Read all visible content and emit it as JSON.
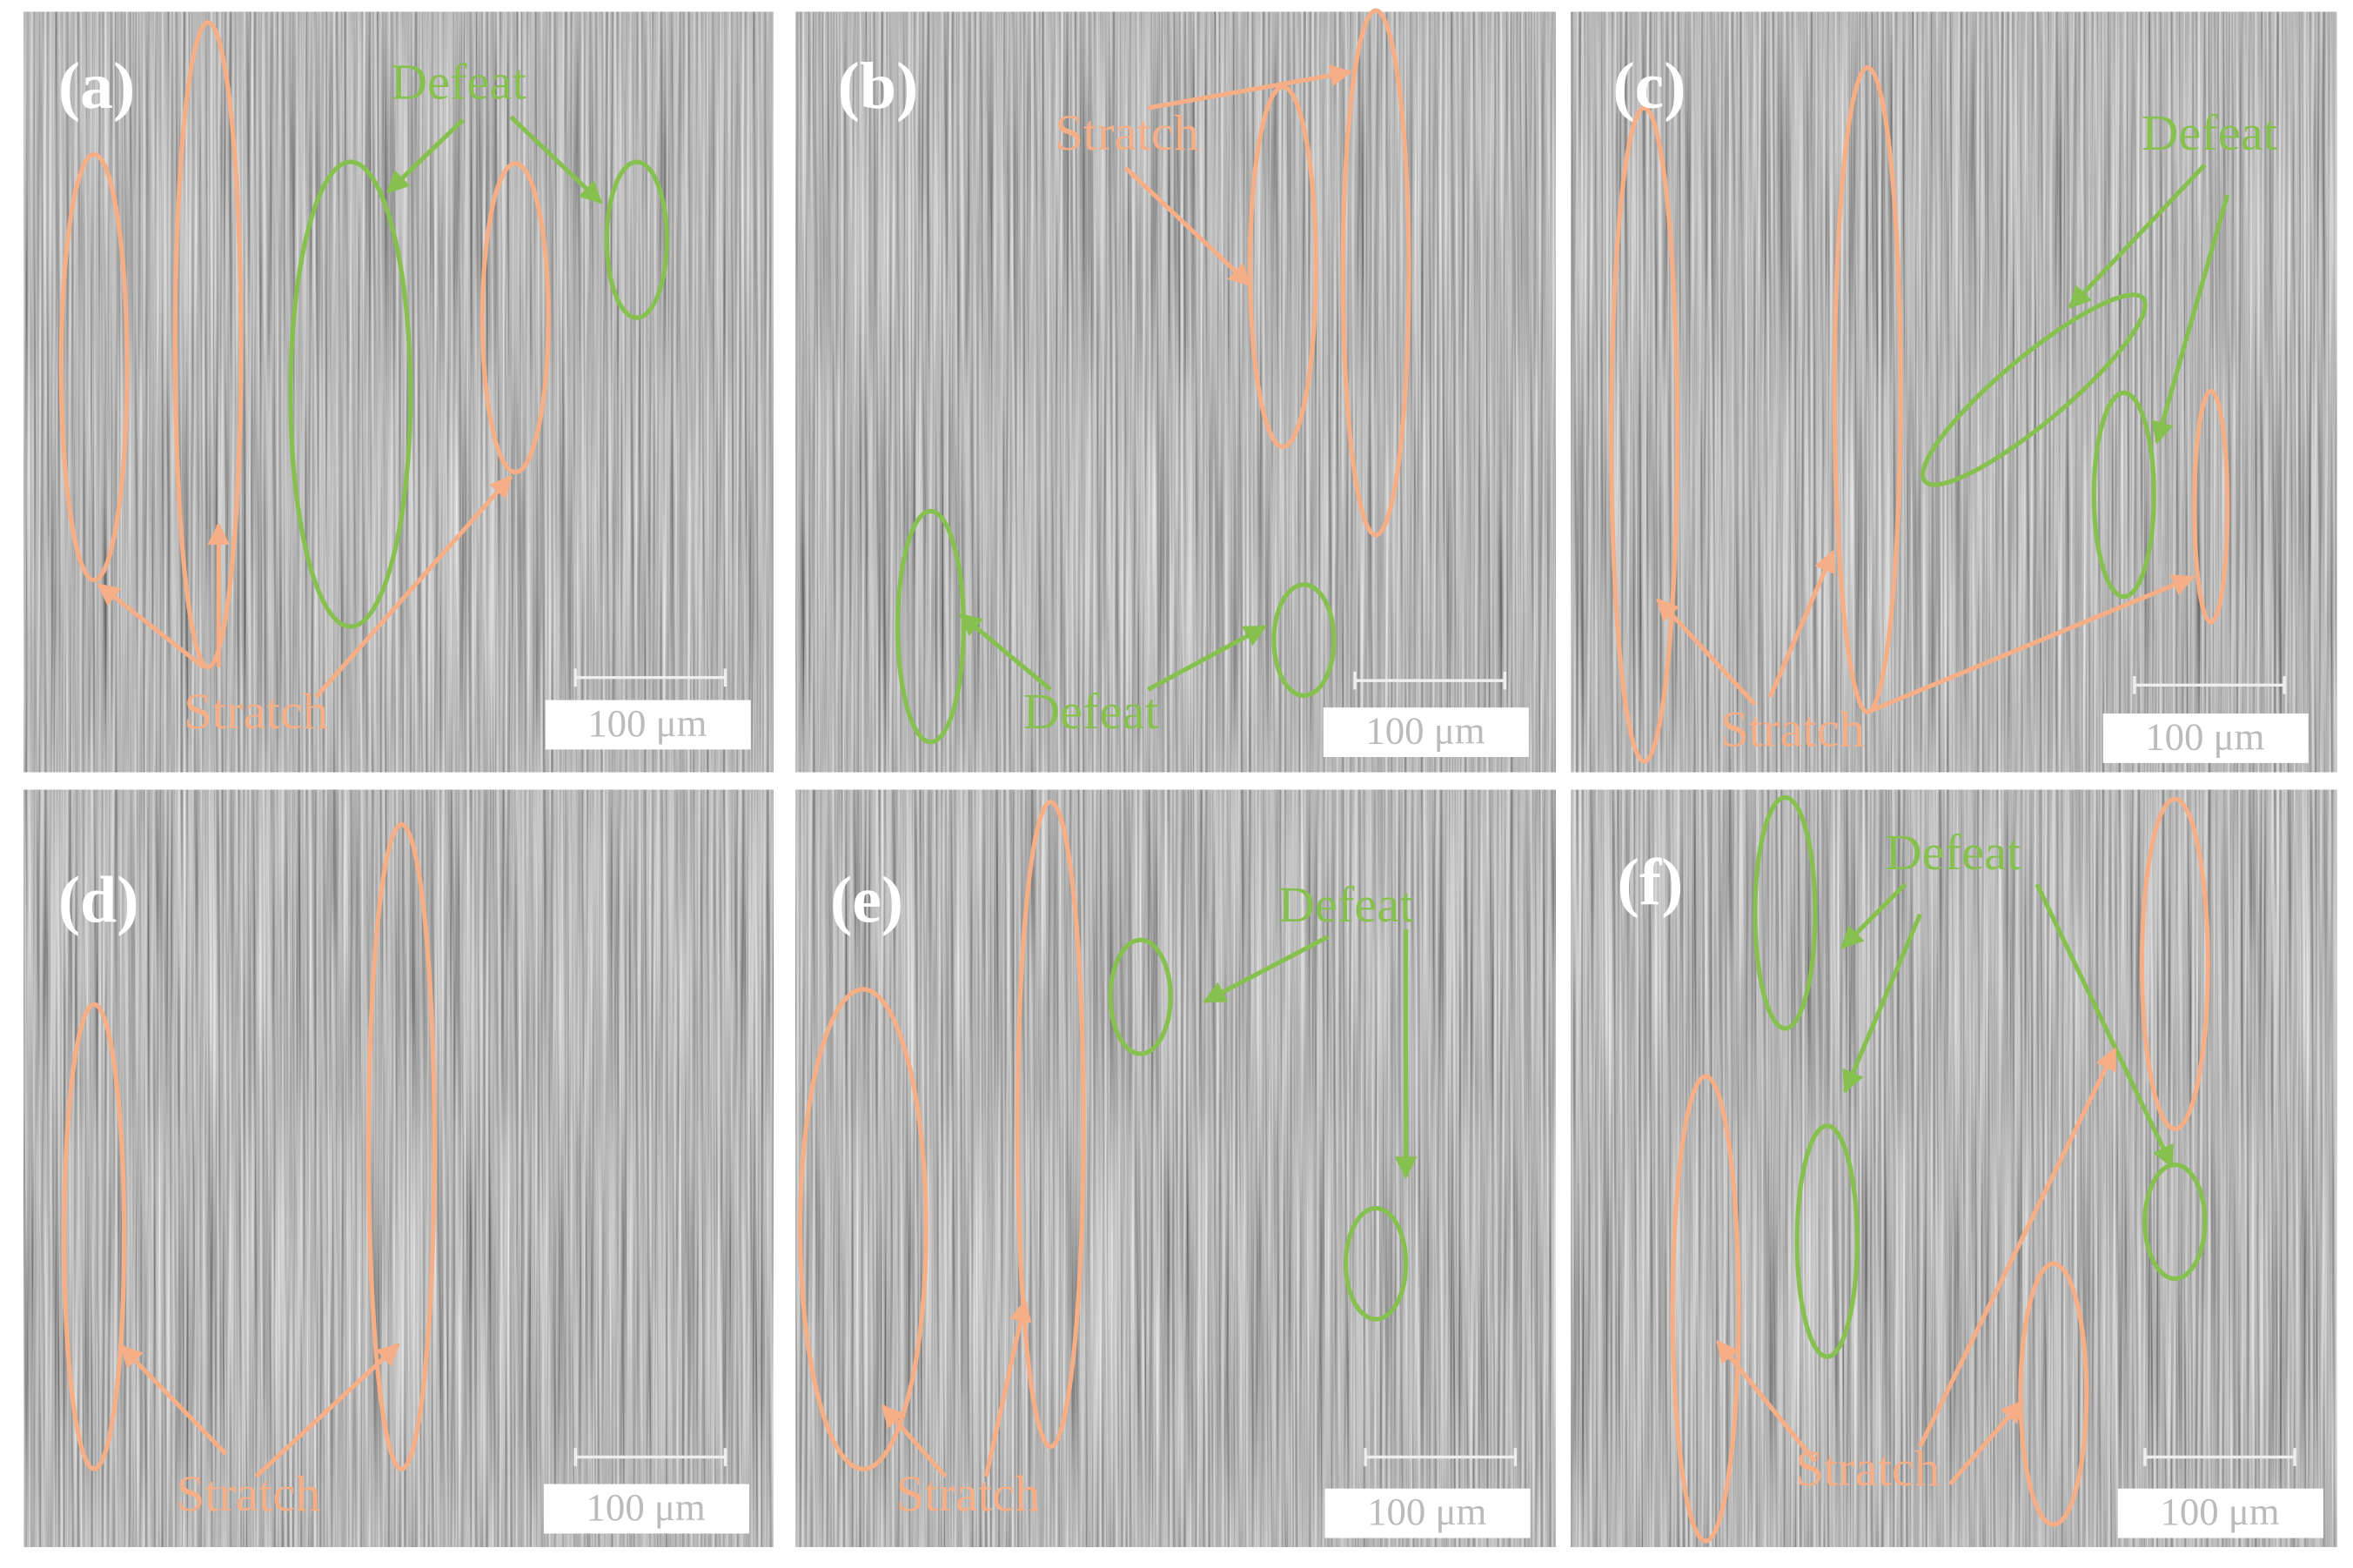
{
  "panels": [
    {
      "label": "(a)",
      "annotations": [
        "Defeat",
        "Stratch"
      ],
      "scale_bar": "100 μm"
    },
    {
      "label": "(b)",
      "annotations": [
        "Stratch",
        "Defeat"
      ],
      "scale_bar": "100 μm"
    },
    {
      "label": "(c)",
      "annotations": [
        "Defeat",
        "Stratch"
      ],
      "scale_bar": "100 μm"
    },
    {
      "label": "(d)",
      "annotations": [
        "Stratch"
      ],
      "scale_bar": "100 μm"
    },
    {
      "label": "(e)",
      "annotations": [
        "Defeat",
        "Stratch"
      ],
      "scale_bar": "100 μm"
    },
    {
      "label": "(f)",
      "annotations": [
        "Defeat",
        "Stratch"
      ],
      "scale_bar": "100 μm"
    }
  ]
}
